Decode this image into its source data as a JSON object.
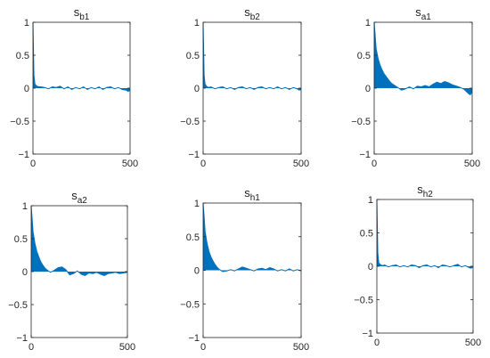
{
  "figure": {
    "background": "#ffffff",
    "axis_color": "#262626",
    "series_color": "#0072bd"
  },
  "chart_data": [
    {
      "type": "area",
      "title_base": "s",
      "title_sub": "b1",
      "xlim": [
        0,
        500
      ],
      "ylim": [
        -1,
        1
      ],
      "x_ticks": [
        0,
        500
      ],
      "x_tick_labels": [
        "0",
        "500"
      ],
      "y_ticks": [
        1,
        0.5,
        0,
        -0.5,
        -1
      ],
      "y_tick_labels": [
        "1",
        "0.5",
        "0",
        "−0.5",
        "−1"
      ],
      "grid": false,
      "series": [
        {
          "x": [
            0,
            5,
            10,
            20,
            30,
            40,
            60,
            80,
            100,
            120,
            140,
            160,
            180,
            200,
            220,
            240,
            260,
            280,
            300,
            320,
            340,
            360,
            380,
            400,
            420,
            440,
            460,
            480,
            490,
            500
          ],
          "values": [
            1.0,
            0.2,
            0.06,
            0.03,
            0.02,
            0.02,
            0.01,
            -0.01,
            0.02,
            0.01,
            0.03,
            -0.01,
            0.02,
            -0.02,
            0.01,
            -0.01,
            0.02,
            -0.02,
            0.01,
            -0.01,
            0.02,
            -0.02,
            0.01,
            0.02,
            -0.01,
            0.01,
            -0.02,
            -0.03,
            -0.05,
            -0.03
          ]
        }
      ]
    },
    {
      "type": "area",
      "title_base": "s",
      "title_sub": "b2",
      "xlim": [
        0,
        500
      ],
      "ylim": [
        -1,
        1
      ],
      "x_ticks": [
        0,
        500
      ],
      "x_tick_labels": [
        "0",
        "500"
      ],
      "y_ticks": [
        1,
        0.5,
        0,
        -0.5,
        -1
      ],
      "y_tick_labels": [
        "1",
        "0.5",
        "0",
        "−0.5",
        "−1"
      ],
      "grid": false,
      "series": [
        {
          "x": [
            0,
            5,
            10,
            20,
            30,
            40,
            60,
            80,
            100,
            120,
            140,
            160,
            180,
            200,
            220,
            240,
            260,
            280,
            300,
            320,
            340,
            360,
            380,
            400,
            420,
            440,
            460,
            480,
            490,
            500
          ],
          "values": [
            1.0,
            0.2,
            0.06,
            0.02,
            0.01,
            0.02,
            -0.01,
            0.01,
            0.02,
            -0.01,
            0.01,
            -0.02,
            0.01,
            0.02,
            -0.01,
            0.01,
            -0.02,
            0.01,
            0.02,
            -0.01,
            0.01,
            -0.01,
            0.02,
            -0.01,
            0.01,
            -0.02,
            0.01,
            -0.01,
            -0.03,
            -0.02
          ]
        }
      ]
    },
    {
      "type": "area",
      "title_base": "s",
      "title_sub": "a1",
      "xlim": [
        0,
        500
      ],
      "ylim": [
        -1,
        1
      ],
      "x_ticks": [
        0,
        500
      ],
      "x_tick_labels": [
        "0",
        "500"
      ],
      "y_ticks": [
        1,
        0.5,
        0,
        -0.5,
        -1
      ],
      "y_tick_labels": [
        "1",
        "0.5",
        "0",
        "−0.5",
        "−1"
      ],
      "grid": false,
      "series": [
        {
          "x": [
            0,
            5,
            10,
            20,
            30,
            40,
            50,
            60,
            70,
            80,
            90,
            100,
            120,
            140,
            160,
            180,
            200,
            220,
            240,
            260,
            280,
            300,
            320,
            340,
            360,
            380,
            400,
            420,
            440,
            460,
            480,
            490,
            500
          ],
          "values": [
            1.0,
            0.8,
            0.6,
            0.45,
            0.35,
            0.28,
            0.22,
            0.18,
            0.14,
            0.1,
            0.07,
            0.05,
            0.01,
            -0.03,
            -0.01,
            0.02,
            -0.01,
            0.03,
            0.02,
            0.04,
            0.02,
            0.06,
            0.09,
            0.07,
            0.1,
            0.08,
            0.05,
            0.03,
            0.01,
            -0.02,
            -0.08,
            -0.1,
            -0.06
          ]
        }
      ]
    },
    {
      "type": "area",
      "title_base": "s",
      "title_sub": "a2",
      "xlim": [
        0,
        500
      ],
      "ylim": [
        -1,
        1
      ],
      "x_ticks": [
        0,
        500
      ],
      "x_tick_labels": [
        "0",
        "500"
      ],
      "y_ticks": [
        1,
        0.5,
        0,
        -0.5,
        -1
      ],
      "y_tick_labels": [
        "1",
        "0.5",
        "0",
        "−0.5",
        "−1"
      ],
      "grid": false,
      "series": [
        {
          "x": [
            0,
            5,
            10,
            20,
            30,
            40,
            50,
            60,
            70,
            80,
            90,
            100,
            120,
            140,
            160,
            180,
            200,
            220,
            240,
            260,
            280,
            300,
            320,
            340,
            360,
            380,
            400,
            420,
            440,
            460,
            480,
            500
          ],
          "values": [
            1.0,
            0.8,
            0.6,
            0.42,
            0.3,
            0.22,
            0.15,
            0.1,
            0.06,
            0.03,
            0.01,
            -0.01,
            0.02,
            0.06,
            0.07,
            0.03,
            -0.05,
            -0.03,
            0.01,
            -0.04,
            -0.06,
            -0.02,
            -0.03,
            -0.01,
            -0.04,
            -0.06,
            -0.03,
            -0.02,
            -0.01,
            -0.03,
            -0.02,
            -0.01
          ]
        }
      ]
    },
    {
      "type": "area",
      "title_base": "s",
      "title_sub": "h1",
      "xlim": [
        0,
        500
      ],
      "ylim": [
        -1,
        1
      ],
      "x_ticks": [
        0,
        500
      ],
      "x_tick_labels": [
        "0",
        "500"
      ],
      "y_ticks": [
        1,
        0.5,
        0,
        -0.5,
        -1
      ],
      "y_tick_labels": [
        "1",
        "0.5",
        "0",
        "−0.5",
        "−1"
      ],
      "grid": false,
      "series": [
        {
          "x": [
            0,
            5,
            10,
            20,
            30,
            40,
            50,
            60,
            70,
            80,
            90,
            100,
            120,
            140,
            160,
            180,
            200,
            220,
            240,
            260,
            280,
            300,
            320,
            340,
            360,
            380,
            400,
            420,
            440,
            460,
            480,
            500
          ],
          "values": [
            1.0,
            0.8,
            0.58,
            0.4,
            0.28,
            0.2,
            0.14,
            0.09,
            0.05,
            0.02,
            0.0,
            -0.02,
            -0.01,
            0.01,
            -0.01,
            0.02,
            0.05,
            0.03,
            0.01,
            -0.01,
            0.02,
            0.03,
            0.01,
            0.04,
            0.02,
            -0.01,
            0.01,
            -0.01,
            0.02,
            -0.01,
            0.01,
            -0.01
          ]
        }
      ]
    },
    {
      "type": "area",
      "title_base": "s",
      "title_sub": "h2",
      "xlim": [
        0,
        500
      ],
      "ylim": [
        -1,
        1
      ],
      "x_ticks": [
        0,
        500
      ],
      "x_tick_labels": [
        "0",
        "500"
      ],
      "y_ticks": [
        1,
        0.5,
        0,
        -0.5,
        -1
      ],
      "y_tick_labels": [
        "1",
        "0.5",
        "0",
        "−0.5",
        "−1"
      ],
      "grid": false,
      "series": [
        {
          "x": [
            0,
            5,
            10,
            20,
            30,
            40,
            60,
            80,
            100,
            120,
            140,
            160,
            180,
            200,
            220,
            240,
            260,
            280,
            300,
            320,
            340,
            360,
            380,
            400,
            420,
            440,
            460,
            480,
            490,
            500
          ],
          "values": [
            1.0,
            0.2,
            0.05,
            0.02,
            0.01,
            0.02,
            -0.01,
            0.01,
            0.02,
            -0.01,
            0.01,
            -0.01,
            0.02,
            0.01,
            -0.02,
            0.01,
            0.02,
            -0.01,
            0.01,
            -0.02,
            0.02,
            0.01,
            -0.01,
            0.01,
            0.03,
            -0.01,
            0.01,
            -0.02,
            -0.03,
            -0.01
          ]
        }
      ]
    }
  ]
}
